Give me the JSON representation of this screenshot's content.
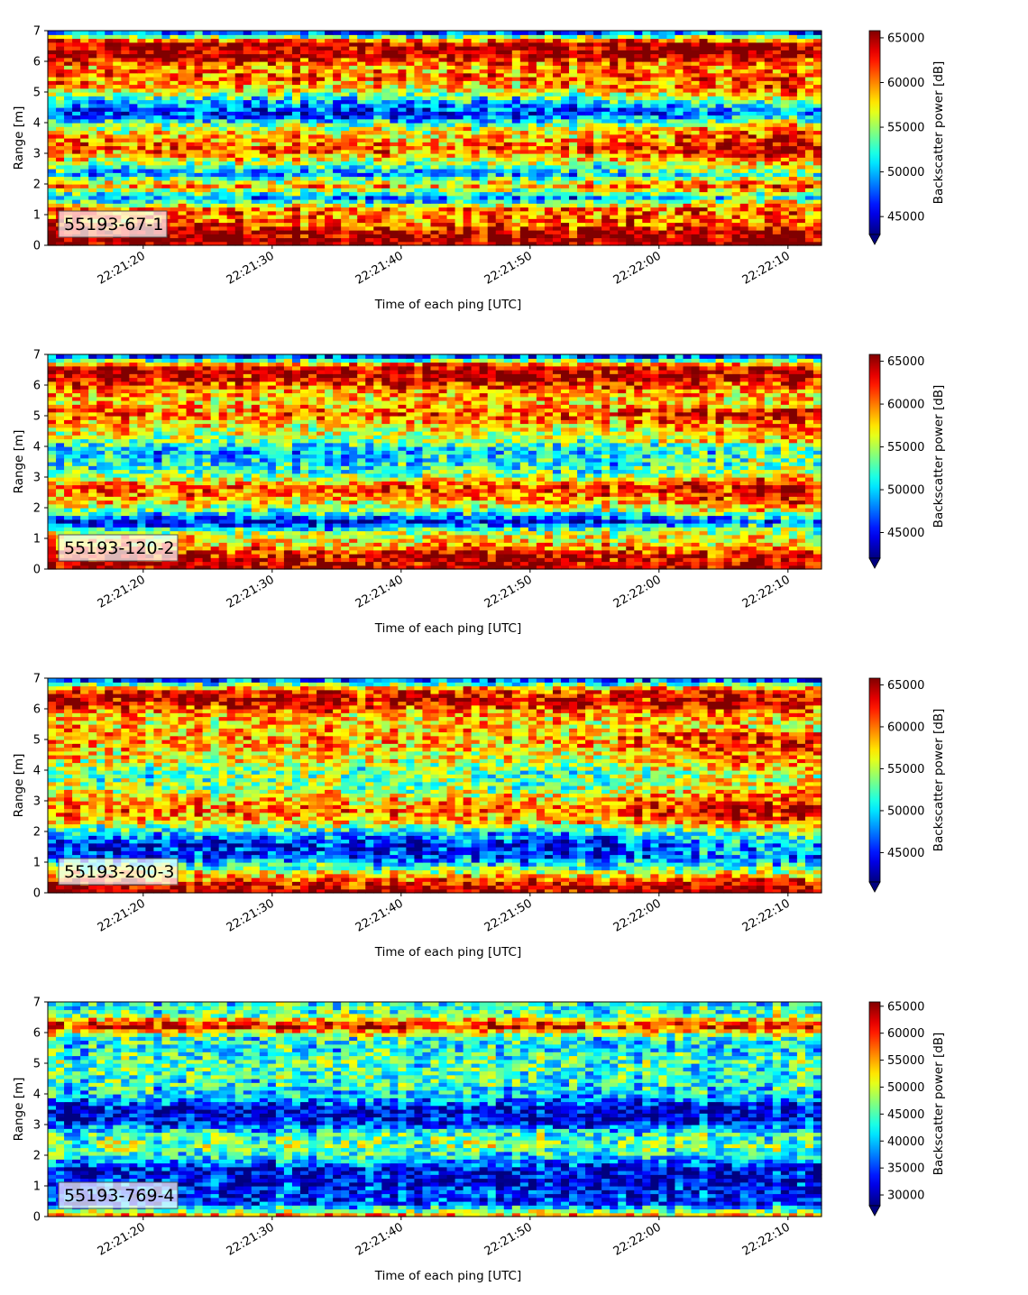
{
  "figure": {
    "xlabel": "Time of each ping [UTC]",
    "ylabel": "Range [m]",
    "colorbar_label": "Backscatter power [dB]"
  },
  "chart_data": [
    {
      "type": "heatmap",
      "label": "55193-67-1",
      "x_ticks": [
        "22:21:20",
        "22:21:30",
        "22:21:40",
        "22:21:50",
        "22:22:00",
        "22:22:10"
      ],
      "y_ticks": [
        0,
        1,
        2,
        3,
        4,
        5,
        6,
        7
      ],
      "ylim": [
        0,
        7
      ],
      "colorbar_ticks": [
        45000,
        50000,
        55000,
        60000,
        65000
      ],
      "colorbar_range": [
        43000,
        65800
      ],
      "colorbar_extend": "min",
      "colormap": "jet",
      "color_field": [
        0.99,
        0.97,
        0.75,
        0.78,
        0.25,
        0.72,
        0.28,
        0.55,
        0.8,
        0.7,
        0.55,
        0.12,
        0.3,
        0.62,
        0.78,
        0.72,
        0.98,
        0.95,
        0.06
      ]
    },
    {
      "type": "heatmap",
      "label": "55193-120-2",
      "x_ticks": [
        "22:21:20",
        "22:21:30",
        "22:21:40",
        "22:21:50",
        "22:22:00",
        "22:22:10"
      ],
      "y_ticks": [
        0,
        1,
        2,
        3,
        4,
        5,
        6,
        7
      ],
      "ylim": [
        0,
        7
      ],
      "colorbar_ticks": [
        45000,
        50000,
        55000,
        60000,
        65000
      ],
      "colorbar_range": [
        42000,
        65800
      ],
      "colorbar_extend": "min",
      "colormap": "jet",
      "color_field": [
        0.99,
        0.92,
        0.7,
        0.55,
        0.08,
        0.5,
        0.72,
        0.8,
        0.45,
        0.35,
        0.3,
        0.55,
        0.62,
        0.78,
        0.65,
        0.72,
        0.94,
        0.9,
        0.05
      ]
    },
    {
      "type": "heatmap",
      "label": "55193-200-3",
      "x_ticks": [
        "22:21:20",
        "22:21:30",
        "22:21:40",
        "22:21:50",
        "22:22:00",
        "22:22:10"
      ],
      "y_ticks": [
        0,
        1,
        2,
        3,
        4,
        5,
        6,
        7
      ],
      "ylim": [
        0,
        7
      ],
      "colorbar_ticks": [
        45000,
        50000,
        55000,
        60000,
        65000
      ],
      "colorbar_range": [
        41500,
        65800
      ],
      "colorbar_extend": "min",
      "colormap": "jet",
      "color_field": [
        0.99,
        0.85,
        0.5,
        0.2,
        0.12,
        0.3,
        0.65,
        0.78,
        0.65,
        0.5,
        0.45,
        0.58,
        0.65,
        0.72,
        0.65,
        0.7,
        0.94,
        0.85,
        0.1
      ]
    },
    {
      "type": "heatmap",
      "label": "55193-769-4",
      "x_ticks": [
        "22:21:20",
        "22:21:30",
        "22:21:40",
        "22:21:50",
        "22:22:00",
        "22:22:10"
      ],
      "y_ticks": [
        0,
        1,
        2,
        3,
        4,
        5,
        6,
        7
      ],
      "ylim": [
        0,
        7
      ],
      "colorbar_ticks": [
        30000,
        35000,
        40000,
        45000,
        50000,
        55000,
        60000,
        65000
      ],
      "colorbar_range": [
        28000,
        65800
      ],
      "colorbar_extend": "min",
      "colormap": "jet",
      "color_field": [
        0.8,
        0.2,
        0.14,
        0.12,
        0.1,
        0.35,
        0.5,
        0.42,
        0.1,
        0.07,
        0.3,
        0.4,
        0.42,
        0.45,
        0.38,
        0.4,
        0.92,
        0.45,
        0.38
      ]
    }
  ]
}
